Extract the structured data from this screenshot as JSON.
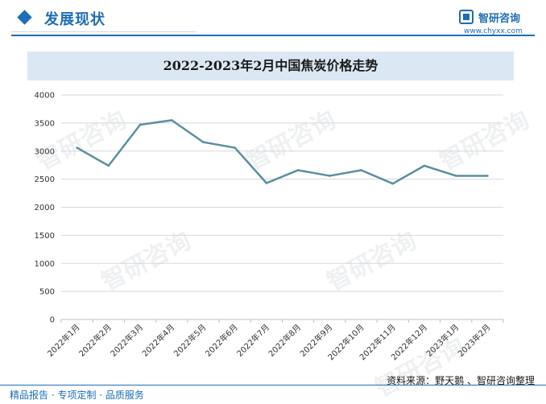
{
  "header": {
    "section_title": "发展现状",
    "logo_name": "智研咨询",
    "logo_url": "www.chyxx.com"
  },
  "colors": {
    "brand": "#1e6db5",
    "series_line": "#5b8fa0",
    "title_band": "#dbe8f4"
  },
  "watermark_text": "智研咨询",
  "chart_data": {
    "type": "line",
    "title": "2022-2023年2月中国焦炭价格走势",
    "xlabel": "",
    "ylabel": "",
    "categories": [
      "2022年1月",
      "2022年2月",
      "2022年3月",
      "2022年4月",
      "2022年5月",
      "2022年6月",
      "2022年7月",
      "2022年8月",
      "2022年9月",
      "2022年10月",
      "2022年11月",
      "2022年12月",
      "2023年1月",
      "2023年2月"
    ],
    "series": [
      {
        "values": [
          3060,
          2740,
          3470,
          3550,
          3160,
          3060,
          2430,
          2660,
          2560,
          2660,
          2420,
          2740,
          2560,
          2560
        ]
      }
    ],
    "ylim": [
      0,
      4000
    ],
    "yticks": [
      0,
      500,
      1000,
      1500,
      2000,
      2500,
      3000,
      3500,
      4000
    ],
    "grid": true,
    "legend": "none"
  },
  "footer": {
    "left": "精品报告 · 专项定制 · 品质服务",
    "right": "资料来源：野天鹅 、智研咨询整理"
  }
}
